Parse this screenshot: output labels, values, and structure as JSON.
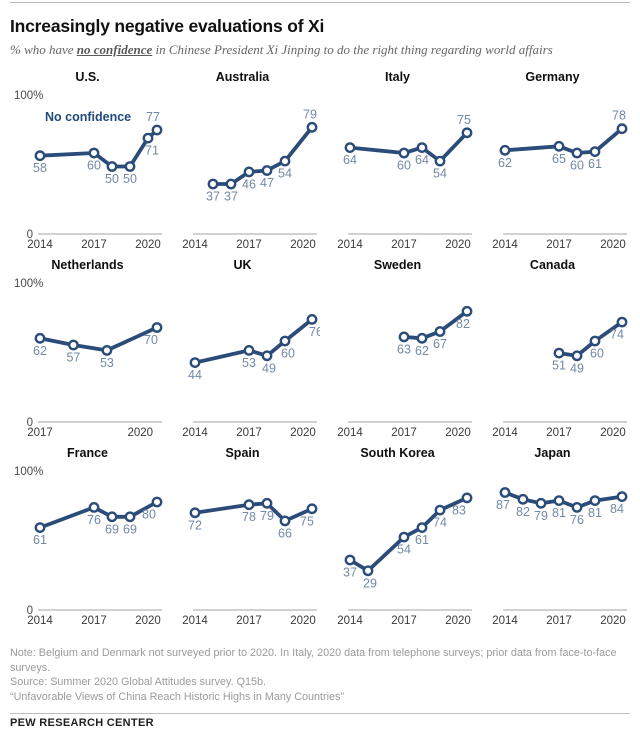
{
  "header": {
    "title": "Increasingly negative evaluations of Xi",
    "subtitle_prefix": "% who have ",
    "subtitle_emphasis": "no confidence",
    "subtitle_suffix": " in Chinese President Xi Jinping to do the right thing regarding world affairs"
  },
  "colors": {
    "line_blue": "#2b4c78",
    "value_label_blue": "#7289a6",
    "legend_blue": "#1f4a7a",
    "axis_gray": "#a3a3a3",
    "tick_text": "#3a3a3a",
    "y_label_text": "#4a4a4a"
  },
  "chart_data": {
    "type": "line",
    "title": "Increasingly negative evaluations of Xi",
    "ylabel": "% no confidence in Xi Jinping",
    "ylim": [
      0,
      100
    ],
    "y_top_label": "100%",
    "y_bottom_label": "0",
    "legend_label": "No confidence",
    "legend_position": "inside-first-panel",
    "panels": [
      {
        "country": "U.S.",
        "x_start": 2014,
        "ticks": [
          "2014",
          "2017",
          "2020"
        ],
        "points": [
          {
            "year": 2014,
            "v": 58
          },
          {
            "year": 2017,
            "v": 60
          },
          {
            "year": 2018,
            "v": 50
          },
          {
            "year": 2019,
            "v": 50
          },
          {
            "year": 2020,
            "v": 71,
            "dx": 4
          },
          {
            "year": 2020.5,
            "v": 77,
            "pos": "above",
            "dx": -4
          }
        ]
      },
      {
        "country": "Australia",
        "x_start": 2014,
        "ticks": [
          "2014",
          "2017",
          "2020"
        ],
        "points": [
          {
            "year": 2015,
            "v": 37
          },
          {
            "year": 2016,
            "v": 37
          },
          {
            "year": 2017,
            "v": 46
          },
          {
            "year": 2018,
            "v": 47
          },
          {
            "year": 2019,
            "v": 54
          },
          {
            "year": 2020.5,
            "v": 79,
            "pos": "above",
            "dx": -2
          }
        ]
      },
      {
        "country": "Italy",
        "x_start": 2014,
        "ticks": [
          "2014",
          "2017",
          "2020"
        ],
        "points": [
          {
            "year": 2014,
            "v": 64
          },
          {
            "year": 2017,
            "v": 60
          },
          {
            "year": 2018,
            "v": 64
          },
          {
            "year": 2019,
            "v": 54
          },
          {
            "year": 2020.5,
            "v": 75,
            "pos": "above",
            "dx": -3
          }
        ]
      },
      {
        "country": "Germany",
        "x_start": 2014,
        "ticks": [
          "2014",
          "2017",
          "2020"
        ],
        "points": [
          {
            "year": 2014,
            "v": 62
          },
          {
            "year": 2017,
            "v": 65
          },
          {
            "year": 2018,
            "v": 60
          },
          {
            "year": 2019,
            "v": 61
          },
          {
            "year": 2020.5,
            "v": 78,
            "pos": "above",
            "dx": -3
          }
        ]
      },
      {
        "country": "Netherlands",
        "x_start": 2017,
        "ticks": [
          "2017",
          "2020"
        ],
        "points": [
          {
            "year": 2017,
            "v": 62
          },
          {
            "year": 2018,
            "v": 57
          },
          {
            "year": 2019,
            "v": 53
          },
          {
            "year": 2020.5,
            "v": 70,
            "dx": -6
          }
        ]
      },
      {
        "country": "UK",
        "x_start": 2014,
        "ticks": [
          "2014",
          "2017",
          "2020"
        ],
        "points": [
          {
            "year": 2014,
            "v": 44
          },
          {
            "year": 2017,
            "v": 53
          },
          {
            "year": 2018,
            "v": 49,
            "dx": 2
          },
          {
            "year": 2019,
            "v": 60,
            "dx": 3
          },
          {
            "year": 2020.5,
            "v": 76,
            "dx": 4
          }
        ]
      },
      {
        "country": "Sweden",
        "x_start": 2014,
        "ticks": [
          "2014",
          "2017",
          "2020"
        ],
        "points": [
          {
            "year": 2017,
            "v": 63
          },
          {
            "year": 2018,
            "v": 62
          },
          {
            "year": 2019,
            "v": 67
          },
          {
            "year": 2020.5,
            "v": 82,
            "dx": -4
          }
        ]
      },
      {
        "country": "Canada",
        "x_start": 2014,
        "ticks": [
          "2014",
          "2017",
          "2020"
        ],
        "points": [
          {
            "year": 2017,
            "v": 51
          },
          {
            "year": 2018,
            "v": 49
          },
          {
            "year": 2019,
            "v": 60,
            "dx": 2
          },
          {
            "year": 2020.5,
            "v": 74,
            "dx": -5
          }
        ]
      },
      {
        "country": "France",
        "x_start": 2014,
        "ticks": [
          "2014",
          "2017",
          "2020"
        ],
        "points": [
          {
            "year": 2014,
            "v": 61
          },
          {
            "year": 2017,
            "v": 76
          },
          {
            "year": 2018,
            "v": 69
          },
          {
            "year": 2019,
            "v": 69
          },
          {
            "year": 2020.5,
            "v": 80,
            "dx": -8
          }
        ]
      },
      {
        "country": "Spain",
        "x_start": 2014,
        "ticks": [
          "2014",
          "2017",
          "2020"
        ],
        "points": [
          {
            "year": 2014,
            "v": 72
          },
          {
            "year": 2017,
            "v": 78
          },
          {
            "year": 2018,
            "v": 79
          },
          {
            "year": 2019,
            "v": 66
          },
          {
            "year": 2020.5,
            "v": 75,
            "dx": -5
          }
        ]
      },
      {
        "country": "South Korea",
        "x_start": 2014,
        "ticks": [
          "2014",
          "2017",
          "2020"
        ],
        "points": [
          {
            "year": 2014,
            "v": 37
          },
          {
            "year": 2015,
            "v": 29,
            "dx": 2
          },
          {
            "year": 2017,
            "v": 54
          },
          {
            "year": 2018,
            "v": 61
          },
          {
            "year": 2019,
            "v": 74
          },
          {
            "year": 2020.5,
            "v": 83,
            "dx": -8
          }
        ]
      },
      {
        "country": "Japan",
        "x_start": 2014,
        "ticks": [
          "2014",
          "2017",
          "2020"
        ],
        "points": [
          {
            "year": 2014,
            "v": 87,
            "dx": -2
          },
          {
            "year": 2015,
            "v": 82
          },
          {
            "year": 2016,
            "v": 79
          },
          {
            "year": 2017,
            "v": 81
          },
          {
            "year": 2018,
            "v": 76
          },
          {
            "year": 2019,
            "v": 81
          },
          {
            "year": 2020.5,
            "v": 84,
            "dx": -5
          }
        ]
      }
    ]
  },
  "footer": {
    "note": "Note: Belgium and Denmark not surveyed prior to 2020. In Italy, 2020 data from telephone surveys; prior data from face-to-face surveys.",
    "source": "Source: Summer 2020 Global Attitudes survey. Q15b.",
    "quote": "“Unfavorable Views of China Reach Historic Highs in Many Countries”",
    "brand": "PEW RESEARCH CENTER"
  }
}
